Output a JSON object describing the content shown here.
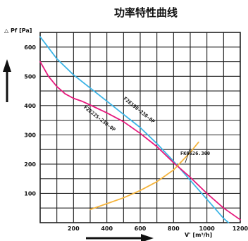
{
  "chart_data": {
    "type": "line",
    "title": "功率特性曲线",
    "ylabel": "△ Pf [Pa]",
    "xlabel": "V' [m³/h]",
    "xlim": [
      0,
      1200
    ],
    "ylim": [
      0,
      650
    ],
    "xticks": [
      200,
      400,
      600,
      800,
      1000,
      1200
    ],
    "xtick_labels": [
      "200",
      "400",
      "600",
      "800",
      "1000",
      "1200"
    ],
    "yticks": [
      100,
      200,
      300,
      400,
      500,
      600
    ],
    "ytick_labels": [
      "100",
      "200",
      "300",
      "400",
      "500",
      "600"
    ],
    "grid": true,
    "colors": {
      "cyan": "#3cb4e6",
      "magenta": "#e6197d",
      "orange": "#f5b43c",
      "grid": "#222222"
    },
    "series": [
      {
        "name": "F2E190-230-0P",
        "color": "#3cb4e6",
        "x": [
          0,
          100,
          200,
          300,
          400,
          500,
          600,
          700,
          800,
          900,
          1000,
          1100,
          1130
        ],
        "y": [
          635,
          560,
          505,
          460,
          415,
          370,
          325,
          270,
          210,
          145,
          80,
          15,
          0
        ]
      },
      {
        "name": "F2E225-230-0P",
        "color": "#e6197d",
        "x": [
          0,
          50,
          100,
          150,
          200,
          250,
          300,
          400,
          500,
          600,
          700,
          800,
          900,
          1000,
          1100,
          1200
        ],
        "y": [
          550,
          500,
          465,
          440,
          425,
          415,
          402,
          375,
          345,
          305,
          260,
          205,
          155,
          100,
          50,
          10
        ]
      },
      {
        "name": "FK6626.300",
        "color": "#f5b43c",
        "x": [
          300,
          400,
          500,
          600,
          700,
          800,
          900,
          950
        ],
        "y": [
          45,
          65,
          85,
          110,
          140,
          180,
          240,
          275
        ]
      }
    ],
    "annotations": [
      {
        "text": "F2E190-230-0P",
        "series": 0
      },
      {
        "text": "F2E225-230-0P",
        "series": 1
      },
      {
        "text": "FK6626.300",
        "series": 2
      }
    ]
  }
}
